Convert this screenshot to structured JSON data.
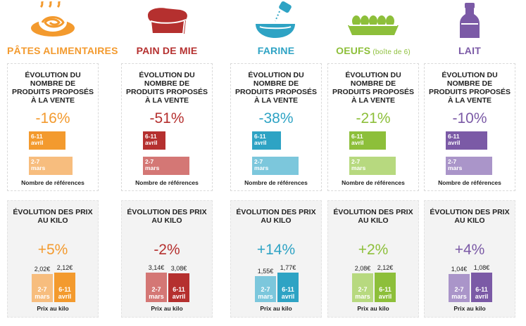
{
  "chart_data": [
    {
      "category": "PÂTES ALIMENTAIRES",
      "subtitle": "",
      "color": "#f39a2e",
      "light": "#f7bd7e",
      "icon": "pasta-icon",
      "refs": {
        "title": "ÉVOLUTION DU NOMBRE DE PRODUITS PROPOSÉS À LA VENTE",
        "change": "-16%",
        "values": [
          79,
          94
        ],
        "labels": [
          "6-11 avril",
          "2-7 mars"
        ],
        "footer": "Nombre de références"
      },
      "prices": {
        "title": "ÉVOLUTION DES PRIX AU KILO",
        "change": "+5%",
        "values": [
          2.02,
          2.12
        ],
        "price_labels": [
          "2,02€",
          "2,12€"
        ],
        "labels": [
          "2-7 mars",
          "6-11 avril"
        ],
        "footer": "Prix au kilo"
      }
    },
    {
      "category": "PAIN DE MIE",
      "subtitle": "",
      "color": "#b5302f",
      "light": "#d47775",
      "icon": "bread-icon",
      "refs": {
        "title": "ÉVOLUTION DU NOMBRE DE PRODUITS PROPOSÉS À LA VENTE",
        "change": "-51%",
        "values": [
          49,
          100
        ],
        "labels": [
          "6-11 avril",
          "2-7 mars"
        ],
        "footer": "Nombre de références"
      },
      "prices": {
        "title": "ÉVOLUTION DES PRIX AU KILO",
        "change": "-2%",
        "values": [
          3.14,
          3.08
        ],
        "price_labels": [
          "3,14€",
          "3,08€"
        ],
        "labels": [
          "2-7 mars",
          "6-11 avril"
        ],
        "footer": "Prix au kilo"
      }
    },
    {
      "category": "FARINE",
      "subtitle": "",
      "color": "#2ea3c4",
      "light": "#7cc7dc",
      "icon": "flour-icon",
      "refs": {
        "title": "ÉVOLUTION DU NOMBRE DE PRODUITS PROPOSÉS À LA VENTE",
        "change": "-38%",
        "values": [
          62,
          100
        ],
        "labels": [
          "6-11 avril",
          "2-7 mars"
        ],
        "footer": "Nombre de références"
      },
      "prices": {
        "title": "ÉVOLUTION DES PRIX AU KILO",
        "change": "+14%",
        "values": [
          1.55,
          1.77
        ],
        "price_labels": [
          "1,55€",
          "1,77€"
        ],
        "labels": [
          "2-7 mars",
          "6-11 avril"
        ],
        "footer": "Prix au kilo"
      }
    },
    {
      "category": "OEUFS",
      "subtitle": "(boîte de 6)",
      "color": "#8dbf3a",
      "light": "#b7d97f",
      "icon": "eggs-icon",
      "refs": {
        "title": "ÉVOLUTION DU NOMBRE DE PRODUITS PROPOSÉS À LA VENTE",
        "change": "-21%",
        "values": [
          79,
          100
        ],
        "labels": [
          "6-11 avril",
          "2-7 mars"
        ],
        "footer": "Nombre de références"
      },
      "prices": {
        "title": "ÉVOLUTION DES PRIX AU KILO",
        "change": "+2%",
        "values": [
          2.08,
          2.12
        ],
        "price_labels": [
          "2,08€",
          "2,12€"
        ],
        "labels": [
          "2-7 mars",
          "6-11 avril"
        ],
        "footer": "Prix au kilo"
      }
    },
    {
      "category": "LAIT",
      "subtitle": "",
      "color": "#7b5aa6",
      "light": "#aa95c9",
      "icon": "milk-bottle-icon",
      "refs": {
        "title": "ÉVOLUTION DU NOMBRE DE PRODUITS PROPOSÉS À LA VENTE",
        "change": "-10%",
        "values": [
          90,
          100
        ],
        "labels": [
          "6-11 avril",
          "2-7 mars"
        ],
        "footer": "Nombre de références"
      },
      "prices": {
        "title": "ÉVOLUTION DES PRIX AU KILO",
        "change": "+4%",
        "values": [
          1.04,
          1.08
        ],
        "price_labels": [
          "1,04€",
          "1,08€"
        ],
        "labels": [
          "2-7 mars",
          "6-11 avril"
        ],
        "footer": "Prix au kilo"
      }
    }
  ]
}
